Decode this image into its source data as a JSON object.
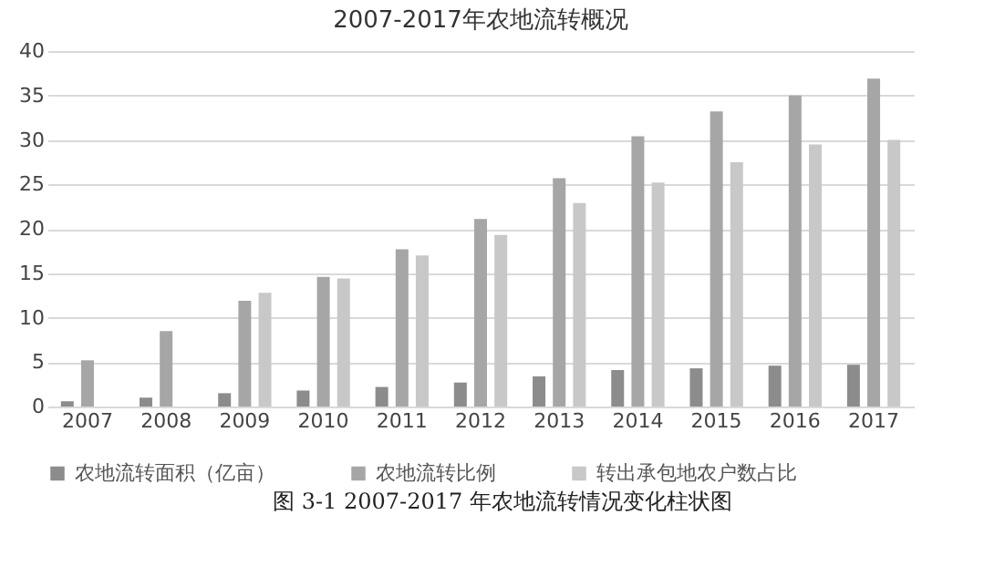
{
  "chart_data": {
    "type": "bar",
    "title": "2007-2017年农地流转概况",
    "categories": [
      "2007",
      "2008",
      "2009",
      "2010",
      "2011",
      "2012",
      "2013",
      "2014",
      "2015",
      "2016",
      "2017"
    ],
    "series": [
      {
        "name": "农地流转面积（亿亩）",
        "color": "#8c8c8c",
        "values": [
          0.6,
          1.0,
          1.5,
          1.8,
          2.2,
          2.7,
          3.4,
          4.1,
          4.3,
          4.6,
          4.7
        ]
      },
      {
        "name": "农地流转比例",
        "color": "#a6a6a6",
        "values": [
          5.2,
          8.5,
          11.9,
          14.6,
          17.7,
          21.1,
          25.7,
          30.4,
          33.2,
          35.0,
          36.9
        ]
      },
      {
        "name": "转出承包地农户数占比",
        "color": "#c8c8c8",
        "values": [
          null,
          null,
          12.8,
          14.4,
          17.0,
          19.3,
          22.9,
          25.2,
          27.5,
          29.5,
          30.0
        ]
      }
    ],
    "ylim": [
      0,
      40
    ],
    "yticks": [
      0,
      5,
      10,
      15,
      20,
      25,
      30,
      35,
      40
    ],
    "grid": "y",
    "legend": "bottom",
    "annotations": [
      "图 3-1  2007-2017 年农地流转情况变化柱状图"
    ]
  }
}
